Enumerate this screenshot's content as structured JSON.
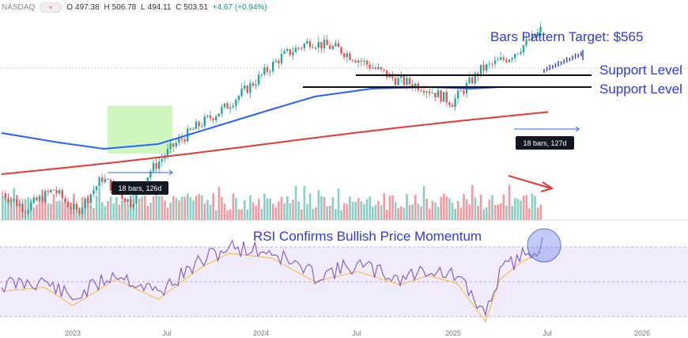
{
  "header": {
    "symbol": "NASDAQ",
    "open_label": "O",
    "open": "497.38",
    "high_label": "H",
    "high": "506.78",
    "low_label": "L",
    "low": "494.11",
    "close_label": "C",
    "close": "503.51",
    "change": "+4.67 (+0.94%)"
  },
  "chart_data": {
    "type": "candlestick",
    "x_ticks": [
      "2023",
      "Jul",
      "2024",
      "Jul",
      "2025",
      "Jul",
      "2026"
    ],
    "annotations": {
      "target": "Bars Pattern Target: $565",
      "support_1": "Support Level",
      "support_2": "Support Level",
      "bars_label_1": "18 bars, 126d",
      "bars_label_2": "18 bars, 127d",
      "rsi_title": "RSI Confirms Bullish Price Momentum"
    },
    "price_series": {
      "candles": 190,
      "close_path": [
        [
          0,
          360
        ],
        [
          8,
          352
        ],
        [
          18,
          362
        ],
        [
          26,
          350
        ],
        [
          35,
          368
        ],
        [
          45,
          355
        ],
        [
          52,
          372
        ],
        [
          60,
          385
        ],
        [
          68,
          395
        ],
        [
          78,
          405
        ],
        [
          88,
          418
        ],
        [
          98,
          432
        ],
        [
          108,
          440
        ],
        [
          118,
          436
        ],
        [
          128,
          428
        ],
        [
          138,
          420
        ],
        [
          148,
          416
        ],
        [
          158,
          408
        ],
        [
          168,
          425
        ],
        [
          178,
          432
        ],
        [
          188,
          444
        ],
        [
          190,
          448
        ]
      ],
      "ma_short_color": "#2962ff",
      "ma_long_color": "#e53935",
      "support_levels_y": [
        424,
        416
      ]
    },
    "volume_series": {
      "bars": 190,
      "up_color": "#89cfc4",
      "down_color": "#f29aa2"
    },
    "rsi_series": {
      "band_upper": 70,
      "band_lower": 30,
      "line_color": "#7e57c2",
      "ma_color": "#f5c04a"
    }
  },
  "colors": {
    "up": "#26a69a",
    "down": "#ef5350",
    "blue_text": "#2f39d6",
    "shade_green": "#c8f5b4",
    "rsi_band": "#f1ecfb",
    "arrow_red": "#e53935"
  }
}
